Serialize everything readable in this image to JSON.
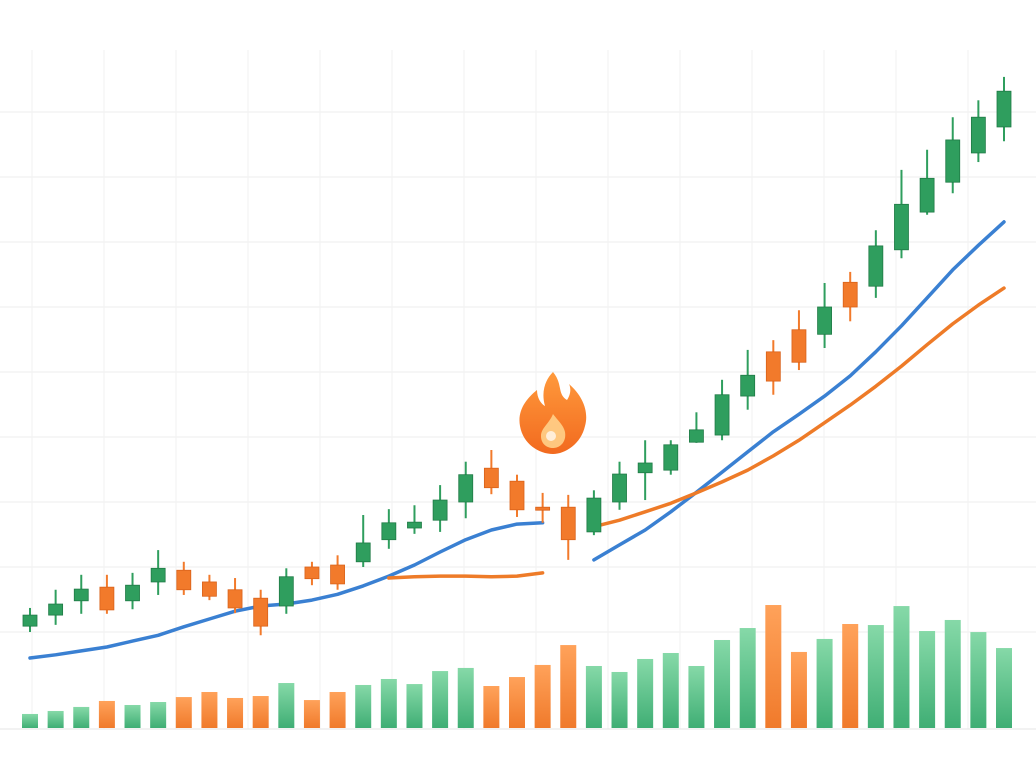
{
  "chart_data": {
    "type": "candlestick",
    "categories": [
      null,
      null,
      null,
      null,
      null,
      null,
      null,
      null,
      null,
      null,
      null,
      null,
      null,
      null,
      null,
      null,
      null,
      null,
      null,
      null,
      null,
      null,
      null,
      null,
      null,
      null,
      null,
      null,
      null,
      null,
      null,
      null,
      null,
      null,
      null,
      null,
      null,
      null,
      null
    ],
    "open": [
      10.9,
      12.6,
      14.8,
      16.9,
      14.8,
      17.7,
      19.5,
      17.7,
      16.5,
      15.2,
      14.0,
      20.0,
      20.3,
      20.8,
      24.2,
      26.0,
      27.2,
      30.0,
      35.2,
      33.2,
      29.2,
      29.2,
      25.4,
      30.0,
      34.5,
      34.9,
      39.2,
      40.3,
      46.3,
      53.1,
      56.5,
      55.8,
      63.8,
      63.2,
      68.8,
      74.6,
      79.2,
      83.7,
      87.7
    ],
    "high": [
      13.7,
      16.5,
      18.8,
      18.8,
      19.1,
      22.6,
      20.8,
      18.8,
      18.3,
      16.5,
      19.8,
      20.8,
      21.8,
      28.0,
      28.9,
      29.5,
      32.6,
      36.2,
      38.0,
      34.2,
      31.4,
      31.1,
      31.8,
      36.2,
      39.5,
      39.5,
      43.8,
      48.8,
      53.4,
      54.9,
      59.5,
      63.7,
      65.4,
      71.8,
      81.1,
      84.2,
      89.2,
      91.8,
      95.4
    ],
    "low": [
      10.0,
      11.1,
      12.8,
      12.8,
      13.5,
      15.7,
      15.7,
      14.9,
      12.9,
      9.5,
      12.8,
      17.2,
      16.5,
      20.0,
      22.8,
      25.1,
      25.4,
      27.5,
      31.2,
      27.7,
      26.8,
      21.1,
      24.9,
      28.8,
      30.3,
      34.2,
      39.1,
      39.5,
      44.2,
      46.5,
      50.3,
      53.7,
      57.8,
      61.4,
      67.5,
      74.2,
      77.5,
      82.3,
      85.5
    ],
    "close": [
      12.6,
      14.3,
      16.6,
      13.4,
      17.2,
      19.8,
      16.5,
      15.5,
      13.7,
      10.9,
      18.5,
      18.2,
      17.4,
      23.7,
      26.8,
      26.9,
      30.3,
      34.2,
      32.2,
      28.8,
      28.8,
      24.2,
      30.6,
      34.3,
      36.0,
      38.8,
      41.1,
      46.5,
      49.5,
      48.6,
      51.5,
      60.0,
      60.0,
      69.4,
      75.8,
      79.8,
      85.7,
      89.2,
      93.2
    ],
    "up_color": "#2f9e5e",
    "down_color": "#f27a2b",
    "volume": [
      10.8,
      13.1,
      16.2,
      20.8,
      17.7,
      20.0,
      23.8,
      27.7,
      23.1,
      24.6,
      34.6,
      21.5,
      27.7,
      33.1,
      37.7,
      33.8,
      43.8,
      46.2,
      32.3,
      39.2,
      48.5,
      63.8,
      47.7,
      43.1,
      53.1,
      57.7,
      47.7,
      67.7,
      76.9,
      94.6,
      58.5,
      68.5,
      80.0,
      79.2,
      93.8,
      74.6,
      83.1,
      73.8,
      61.5
    ],
    "series": [
      {
        "color": "#3a80d2",
        "values": [
          6.0,
          6.5,
          7.1,
          7.7,
          8.6,
          9.5,
          10.8,
          12.0,
          13.2,
          14.0,
          14.3,
          14.9,
          15.8,
          17.1,
          18.6,
          20.3,
          22.3,
          24.2,
          25.7,
          26.6,
          26.8,
          null,
          21.1,
          23.4,
          25.7,
          28.5,
          31.5,
          34.6,
          37.7,
          40.8,
          43.5,
          46.3,
          49.4,
          53.1,
          57.1,
          61.4,
          65.7,
          69.5,
          73.1
        ]
      },
      {
        "color": "#ee7b28",
        "values": [
          null,
          null,
          null,
          null,
          null,
          null,
          null,
          null,
          null,
          null,
          null,
          null,
          null,
          null,
          18.3,
          18.5,
          18.6,
          18.6,
          18.5,
          18.6,
          19.1,
          null,
          26.2,
          27.2,
          28.5,
          29.8,
          31.4,
          33.1,
          34.9,
          37.1,
          39.5,
          42.2,
          44.9,
          47.8,
          50.9,
          54.2,
          57.4,
          60.3,
          62.9
        ]
      }
    ],
    "ylim": [
      0,
      100
    ],
    "yticks": [
      10,
      20,
      30,
      40,
      50,
      60,
      70,
      80,
      90
    ],
    "y2lim": [
      0,
      100
    ],
    "grid": true
  }
}
